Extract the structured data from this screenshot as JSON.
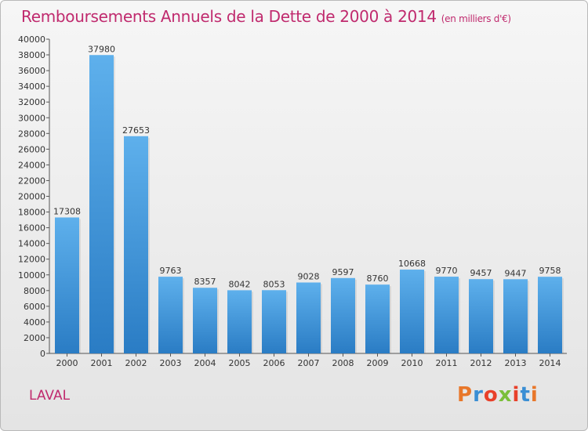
{
  "chart_data": {
    "type": "bar",
    "title": "Remboursements Annuels de la Dette de 2000 à 2014",
    "subtitle": "(en milliers d'€)",
    "categories": [
      "2000",
      "2001",
      "2002",
      "2003",
      "2004",
      "2005",
      "2006",
      "2007",
      "2008",
      "2009",
      "2010",
      "2011",
      "2012",
      "2013",
      "2014"
    ],
    "values": [
      17308,
      37980,
      27653,
      9763,
      8357,
      8042,
      8053,
      9028,
      9597,
      8760,
      10668,
      9770,
      9457,
      9447,
      9758
    ],
    "ylim": [
      0,
      40000
    ],
    "yticks": [
      0,
      2000,
      4000,
      6000,
      8000,
      10000,
      12000,
      14000,
      16000,
      18000,
      20000,
      22000,
      24000,
      26000,
      28000,
      30000,
      32000,
      34000,
      36000,
      38000,
      40000
    ],
    "grid": false,
    "bar_color": "#3d8fd6"
  },
  "footer": {
    "place": "LAVAL",
    "logo": "Proxiti"
  }
}
